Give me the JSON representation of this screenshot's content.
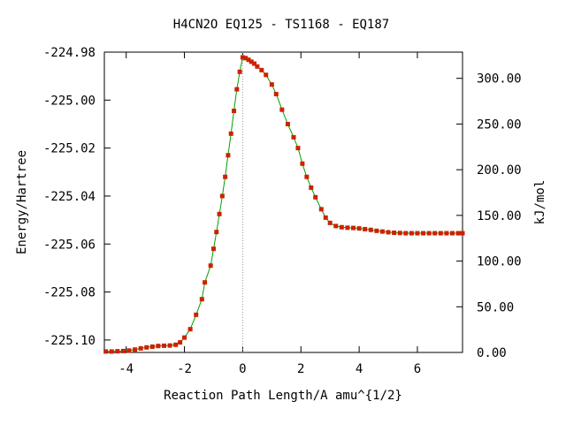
{
  "chart_data": {
    "type": "line",
    "title": "H4CN2O   EQ125 - TS1168 - EQ187",
    "xlabel": "Reaction Path Length/A amu^{1/2}",
    "ylabel": "Energy/Hartree",
    "y2label": "kJ/mol",
    "xlim": [
      -4.75,
      7.55
    ],
    "ylim": [
      -225.1052,
      -224.98
    ],
    "y2lim": [
      0.0,
      328.7
    ],
    "x_ticks": [
      -4,
      -2,
      0,
      2,
      4,
      6
    ],
    "x_tick_labels": [
      "-4",
      "-2",
      "0",
      "2",
      "4",
      "6"
    ],
    "y_ticks": [
      -224.98,
      -225.0,
      -225.02,
      -225.04,
      -225.06,
      -225.08,
      -225.1
    ],
    "y_tick_labels": [
      "-224.98",
      "-225.00",
      "-225.02",
      "-225.04",
      "-225.06",
      "-225.08",
      "-225.10"
    ],
    "y2_ticks": [
      300,
      250,
      200,
      150,
      100,
      50,
      0
    ],
    "y2_tick_labels": [
      "300.00",
      "250.00",
      "200.00",
      "150.00",
      "100.00",
      "50.00",
      "0.00"
    ],
    "ts_marker_x": 0,
    "grid": false,
    "line_color": "#00a000",
    "point_color": "#cc2200",
    "series": [
      {
        "name": "",
        "points": [
          [
            -4.7,
            -225.1048
          ],
          [
            -4.5,
            -225.1048
          ],
          [
            -4.3,
            -225.1047
          ],
          [
            -4.1,
            -225.1046
          ],
          [
            -3.9,
            -225.1044
          ],
          [
            -3.7,
            -225.104
          ],
          [
            -3.5,
            -225.1035
          ],
          [
            -3.3,
            -225.1031
          ],
          [
            -3.1,
            -225.1028
          ],
          [
            -2.9,
            -225.1025
          ],
          [
            -2.7,
            -225.1024
          ],
          [
            -2.5,
            -225.1023
          ],
          [
            -2.3,
            -225.102
          ],
          [
            -2.15,
            -225.101
          ],
          [
            -2.0,
            -225.099
          ],
          [
            -1.8,
            -225.0955
          ],
          [
            -1.6,
            -225.0895
          ],
          [
            -1.4,
            -225.083
          ],
          [
            -1.3,
            -225.076
          ],
          [
            -1.1,
            -225.069
          ],
          [
            -1.0,
            -225.062
          ],
          [
            -0.9,
            -225.055
          ],
          [
            -0.8,
            -225.0475
          ],
          [
            -0.7,
            -225.04
          ],
          [
            -0.6,
            -225.032
          ],
          [
            -0.5,
            -225.023
          ],
          [
            -0.4,
            -225.014
          ],
          [
            -0.3,
            -225.0045
          ],
          [
            -0.2,
            -224.9955
          ],
          [
            -0.1,
            -224.9882
          ],
          [
            0.0,
            -224.9822
          ],
          [
            0.1,
            -224.9825
          ],
          [
            0.2,
            -224.9832
          ],
          [
            0.3,
            -224.984
          ],
          [
            0.4,
            -224.9848
          ],
          [
            0.5,
            -224.986
          ],
          [
            0.65,
            -224.9875
          ],
          [
            0.8,
            -224.9895
          ],
          [
            1.0,
            -224.9935
          ],
          [
            1.15,
            -224.9975
          ],
          [
            1.35,
            -225.004
          ],
          [
            1.55,
            -225.01
          ],
          [
            1.75,
            -225.0155
          ],
          [
            1.9,
            -225.02
          ],
          [
            2.05,
            -225.0265
          ],
          [
            2.2,
            -225.032
          ],
          [
            2.35,
            -225.0365
          ],
          [
            2.5,
            -225.0405
          ],
          [
            2.7,
            -225.0455
          ],
          [
            2.85,
            -225.049
          ],
          [
            3.0,
            -225.0512
          ],
          [
            3.2,
            -225.0525
          ],
          [
            3.4,
            -225.053
          ],
          [
            3.6,
            -225.0532
          ],
          [
            3.8,
            -225.0533
          ],
          [
            4.0,
            -225.0535
          ],
          [
            4.2,
            -225.0538
          ],
          [
            4.4,
            -225.0541
          ],
          [
            4.6,
            -225.0545
          ],
          [
            4.8,
            -225.0548
          ],
          [
            5.0,
            -225.0551
          ],
          [
            5.2,
            -225.0553
          ],
          [
            5.4,
            -225.0554
          ],
          [
            5.6,
            -225.0555
          ],
          [
            5.8,
            -225.0555
          ],
          [
            6.0,
            -225.0555
          ],
          [
            6.2,
            -225.0555
          ],
          [
            6.4,
            -225.0555
          ],
          [
            6.6,
            -225.0555
          ],
          [
            6.8,
            -225.0555
          ],
          [
            7.0,
            -225.0555
          ],
          [
            7.2,
            -225.0555
          ],
          [
            7.4,
            -225.0555
          ],
          [
            7.55,
            -225.0555
          ]
        ]
      }
    ]
  }
}
